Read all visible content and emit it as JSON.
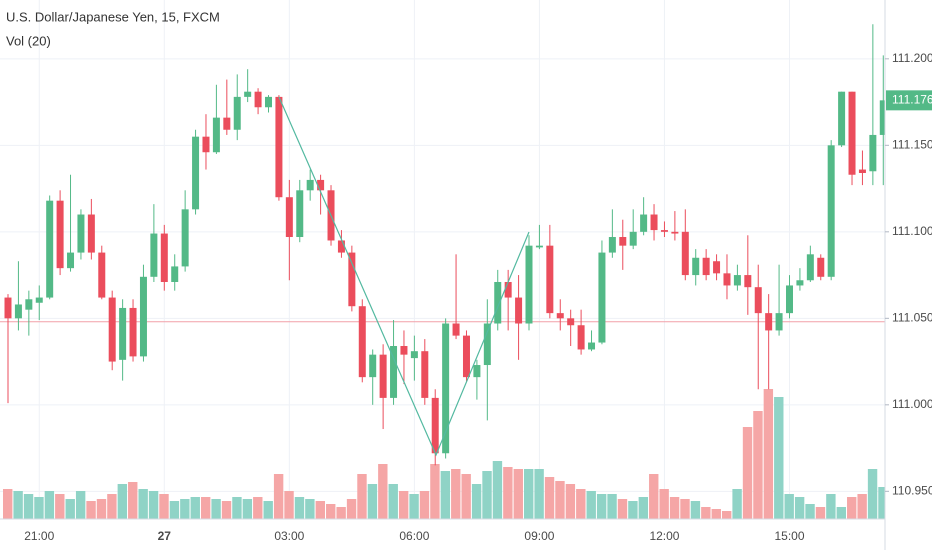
{
  "chart_data": {
    "type": "candlestick",
    "title": "U.S. Dollar/Japanese Yen, 15, FXCM",
    "volume_title": "Vol (20)",
    "categories": [
      null,
      null,
      null,
      "21:00",
      null,
      null,
      null,
      null,
      null,
      null,
      null,
      null,
      null,
      null,
      null,
      "27",
      null,
      null,
      null,
      null,
      null,
      null,
      null,
      null,
      null,
      null,
      null,
      "03:00",
      null,
      null,
      null,
      null,
      null,
      null,
      null,
      null,
      null,
      null,
      null,
      "06:00",
      null,
      null,
      null,
      null,
      null,
      null,
      null,
      null,
      null,
      null,
      null,
      "09:00",
      null,
      null,
      null,
      null,
      null,
      null,
      null,
      null,
      null,
      null,
      null,
      "12:00",
      null,
      null,
      null,
      null,
      null,
      null,
      null,
      null,
      null,
      null,
      null,
      "15:00",
      null,
      null,
      null,
      null,
      null,
      null,
      null,
      null,
      null
    ],
    "open": [
      111.062,
      111.05,
      111.055,
      111.059,
      111.062,
      111.118,
      111.079,
      111.088,
      111.11,
      111.088,
      111.062,
      111.026,
      111.056,
      111.028,
      111.074,
      111.099,
      111.071,
      111.08,
      111.113,
      111.155,
      111.146,
      111.166,
      111.159,
      111.178,
      111.181,
      111.172,
      111.178,
      111.12,
      111.097,
      111.124,
      111.13,
      111.124,
      111.095,
      111.088,
      111.057,
      111.016,
      111.029,
      111.004,
      111.034,
      111.027,
      111.031,
      111.004,
      110.972,
      111.047,
      111.04,
      111.016,
      111.023,
      111.047,
      111.071,
      111.062,
      111.047,
      111.091,
      111.092,
      111.053,
      111.05,
      111.046,
      111.032,
      111.036,
      111.088,
      111.097,
      111.092,
      111.1,
      111.11,
      111.101,
      111.1,
      111.1,
      111.075,
      111.085,
      111.083,
      111.076,
      111.069,
      111.075,
      111.068,
      111.053,
      111.043,
      111.053,
      111.069,
      111.072,
      111.085,
      111.074,
      111.15,
      111.181,
      111.136,
      111.135,
      111.156
    ],
    "high": [
      111.064,
      111.083,
      111.066,
      111.069,
      111.121,
      111.124,
      111.133,
      111.113,
      111.119,
      111.092,
      111.066,
      111.061,
      111.061,
      111.081,
      111.116,
      111.104,
      111.087,
      111.124,
      111.159,
      111.168,
      111.185,
      111.188,
      111.191,
      111.194,
      111.183,
      111.179,
      111.179,
      111.13,
      111.13,
      111.136,
      111.133,
      111.127,
      111.101,
      111.092,
      111.061,
      111.032,
      111.035,
      111.049,
      111.043,
      111.04,
      111.038,
      111.009,
      111.05,
      111.087,
      111.043,
      111.026,
      111.061,
      111.078,
      111.078,
      111.075,
      111.098,
      111.104,
      111.104,
      111.061,
      111.055,
      111.055,
      111.043,
      111.095,
      111.113,
      111.107,
      111.113,
      111.12,
      111.116,
      111.106,
      111.112,
      111.113,
      111.09,
      111.09,
      111.087,
      111.087,
      111.081,
      111.098,
      111.081,
      111.064,
      111.081,
      111.075,
      111.079,
      111.092,
      111.087,
      111.153,
      111.181,
      111.181,
      111.147,
      111.22,
      111.202
    ],
    "low": [
      111.001,
      111.043,
      111.04,
      111.049,
      111.061,
      111.075,
      111.077,
      111.084,
      111.084,
      111.061,
      111.02,
      111.014,
      111.025,
      111.025,
      111.071,
      111.066,
      111.066,
      111.077,
      111.11,
      111.136,
      111.145,
      111.156,
      111.153,
      111.175,
      111.168,
      111.169,
      111.118,
      111.072,
      111.094,
      111.118,
      111.11,
      111.092,
      111.085,
      111.054,
      111.013,
      111.0,
      110.986,
      111.0,
      111.012,
      111.014,
      111.0,
      110.965,
      110.969,
      111.038,
      111.013,
      111.003,
      110.991,
      111.043,
      111.043,
      111.026,
      111.043,
      111.09,
      111.05,
      111.043,
      111.034,
      111.029,
      111.031,
      111.035,
      111.085,
      111.078,
      111.09,
      111.098,
      111.095,
      111.097,
      111.095,
      111.072,
      111.069,
      111.072,
      111.072,
      111.061,
      111.066,
      111.052,
      111.009,
      111.009,
      111.04,
      111.05,
      111.066,
      111.071,
      111.072,
      111.072,
      111.149,
      111.127,
      111.127,
      111.127,
      111.127
    ],
    "close": [
      111.05,
      111.058,
      111.061,
      111.062,
      111.118,
      111.079,
      111.088,
      111.11,
      111.088,
      111.062,
      111.025,
      111.056,
      111.028,
      111.074,
      111.099,
      111.071,
      111.08,
      111.113,
      111.155,
      111.146,
      111.166,
      111.159,
      111.178,
      111.181,
      111.172,
      111.178,
      111.12,
      111.097,
      111.124,
      111.13,
      111.124,
      111.095,
      111.088,
      111.057,
      111.016,
      111.029,
      111.004,
      111.034,
      111.029,
      111.031,
      111.004,
      110.972,
      111.047,
      111.04,
      111.016,
      111.023,
      111.047,
      111.071,
      111.062,
      111.047,
      111.092,
      111.092,
      111.053,
      111.05,
      111.046,
      111.032,
      111.036,
      111.088,
      111.097,
      111.092,
      111.1,
      111.11,
      111.101,
      111.1,
      111.099,
      111.075,
      111.085,
      111.075,
      111.076,
      111.069,
      111.075,
      111.068,
      111.053,
      111.043,
      111.053,
      111.069,
      111.072,
      111.087,
      111.074,
      111.15,
      111.181,
      111.133,
      111.134,
      111.156,
      111.176
    ],
    "volume": [
      30,
      28,
      25,
      22,
      28,
      25,
      20,
      28,
      18,
      20,
      25,
      35,
      37,
      30,
      28,
      25,
      18,
      20,
      22,
      22,
      20,
      18,
      22,
      20,
      22,
      18,
      45,
      28,
      22,
      20,
      18,
      15,
      12,
      20,
      45,
      35,
      55,
      35,
      28,
      25,
      28,
      55,
      48,
      50,
      45,
      35,
      48,
      58,
      52,
      50,
      50,
      50,
      42,
      38,
      35,
      30,
      28,
      25,
      25,
      20,
      18,
      22,
      45,
      30,
      22,
      20,
      18,
      12,
      10,
      8,
      30,
      92,
      108,
      130,
      122,
      25,
      22,
      15,
      12,
      25,
      12,
      22,
      25,
      50,
      32
    ],
    "up_color": "#53b987",
    "down_color": "#eb4d5c",
    "volume_up_color": "#8fd3c6",
    "volume_down_color": "#f5a6a6",
    "ylim": [
      110.934,
      111.234
    ],
    "yticks": [
      {
        "value": 111.2,
        "label": "111.200"
      },
      {
        "value": 111.15,
        "label": "111.150"
      },
      {
        "value": 111.1,
        "label": "111.100"
      },
      {
        "value": 111.05,
        "label": "111.050"
      },
      {
        "value": 111.0,
        "label": "111.000"
      },
      {
        "value": 110.95,
        "label": "110.950"
      }
    ],
    "volume_ylim": [
      0,
      519
    ],
    "last_price": {
      "value": 111.176,
      "label": "111.176"
    },
    "price_line": 111.048,
    "grid": true
  }
}
